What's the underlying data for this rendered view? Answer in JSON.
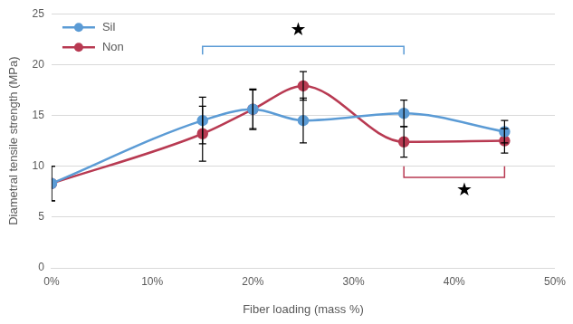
{
  "chart_data": {
    "type": "line",
    "x_label": "Fiber loading (mass %)",
    "y_label": "Diametral tensile strength (MPa)",
    "x": [
      0,
      15,
      20,
      25,
      35,
      45
    ],
    "series": [
      {
        "name": "Sil",
        "color": "#5b9bd5",
        "marker": "circle",
        "line_style": "smooth",
        "values": [
          8.3,
          14.5,
          15.6,
          14.5,
          15.2,
          13.4
        ],
        "error": [
          1.7,
          2.3,
          2.0,
          2.2,
          1.3,
          1.1
        ]
      },
      {
        "name": "Non",
        "color": "#b83a52",
        "marker": "circle",
        "line_style": "smooth",
        "values": [
          8.3,
          13.2,
          15.6,
          17.9,
          12.4,
          12.5
        ],
        "error": [
          1.7,
          2.7,
          1.9,
          1.4,
          1.5,
          1.2
        ]
      }
    ],
    "xlim": [
      0,
      50
    ],
    "xticks": [
      {
        "value": 0,
        "label": "0%"
      },
      {
        "value": 10,
        "label": "10%"
      },
      {
        "value": 20,
        "label": "20%"
      },
      {
        "value": 30,
        "label": "30%"
      },
      {
        "value": 40,
        "label": "40%"
      },
      {
        "value": 50,
        "label": "50%"
      }
    ],
    "ylim": [
      0,
      25
    ],
    "yticks": [
      0,
      5,
      10,
      15,
      20,
      25
    ],
    "grid": true,
    "legend": "top-left",
    "annotations": [
      {
        "text": "★",
        "x": 24.5,
        "y": 23.3,
        "bracket": {
          "from": 15,
          "to": 35,
          "y": 21.8,
          "end_y": 21.0,
          "color": "#5b9bd5"
        }
      },
      {
        "text": "★",
        "x": 41.0,
        "y": 7.6,
        "bracket": {
          "from": 35,
          "to": 45,
          "y": 8.9,
          "end_y": 10.0,
          "color": "#b83a52"
        }
      }
    ]
  }
}
